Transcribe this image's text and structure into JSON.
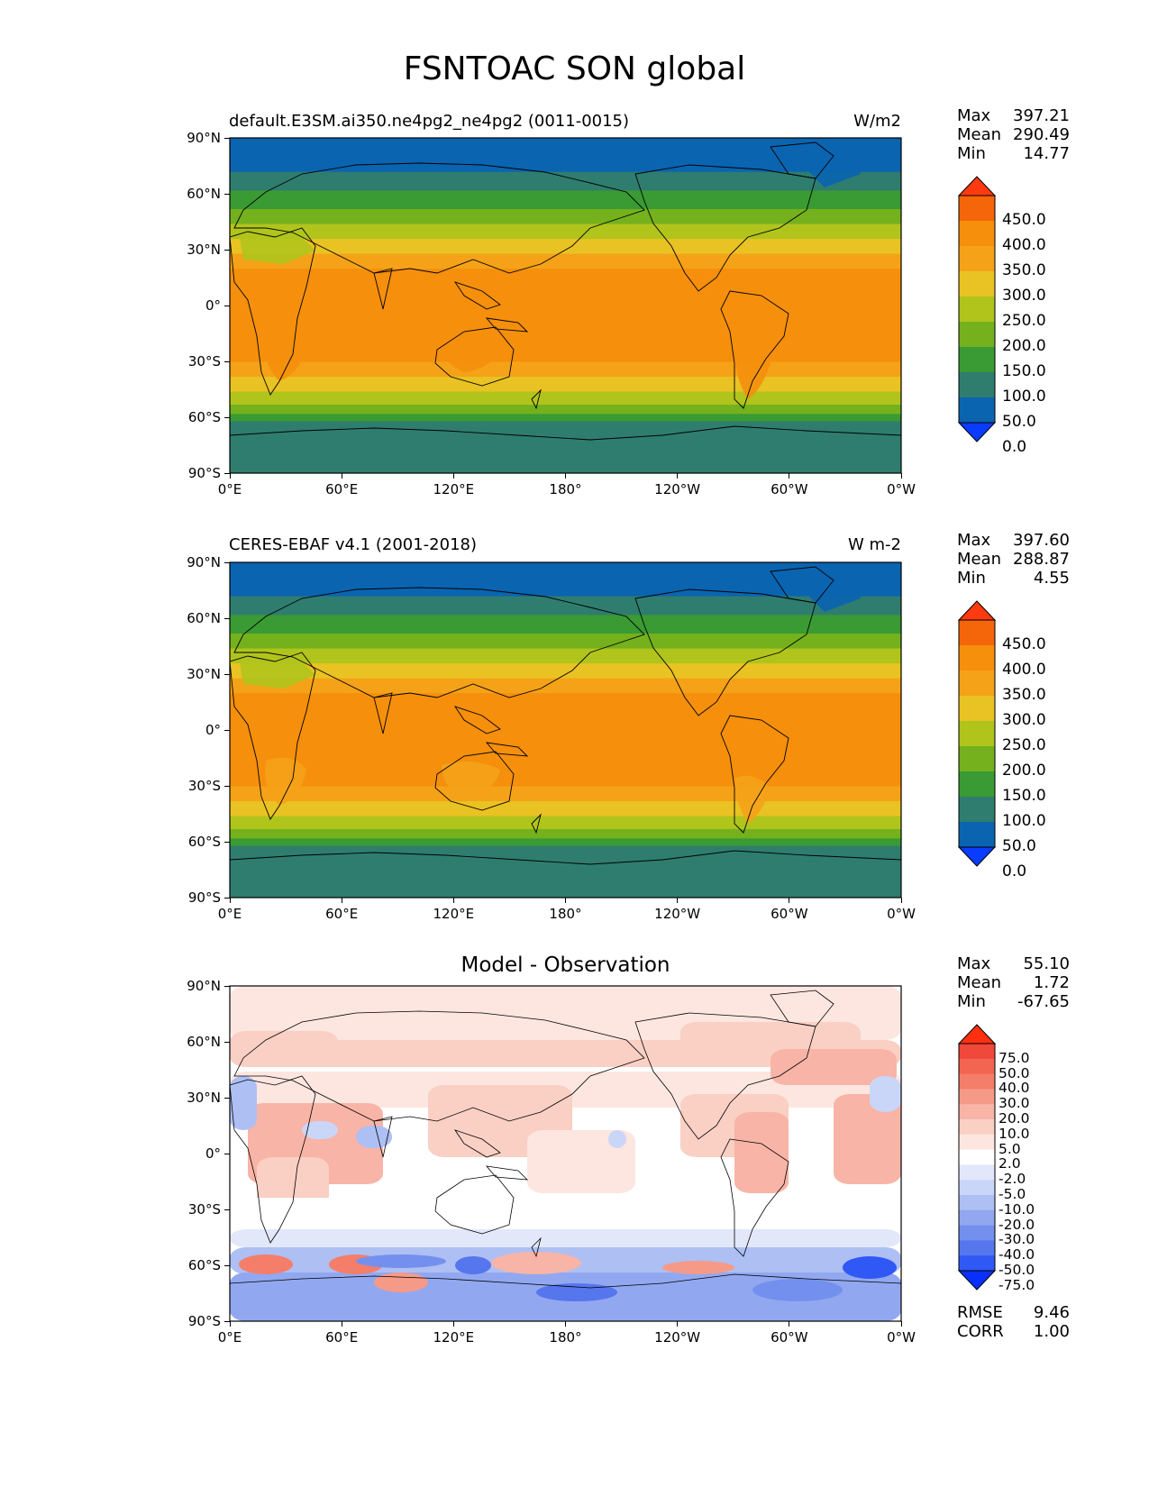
{
  "title": "FSNTOAC SON global",
  "lat_ticks": [
    "90°N",
    "60°N",
    "30°N",
    "0°",
    "30°S",
    "60°S",
    "90°S"
  ],
  "lon_ticks": [
    "0°E",
    "60°E",
    "120°E",
    "180°",
    "120°W",
    "60°W",
    "0°W"
  ],
  "panels": [
    {
      "id": "test",
      "title_left": "default.E3SM.ai350.ne4pg2_ne4pg2 (0011-0015)",
      "title_right": "W/m2",
      "stats": {
        "max_label": "Max",
        "max": "397.21",
        "mean_label": "Mean",
        "mean": "290.49",
        "min_label": "Min",
        "min": "14.77"
      },
      "colorbar_ticks": [
        "450.0",
        "400.0",
        "350.0",
        "300.0",
        "250.0",
        "200.0",
        "150.0",
        "100.0",
        "50.0",
        "0.0"
      ]
    },
    {
      "id": "reference",
      "title_left": "CERES-EBAF v4.1 (2001-2018)",
      "title_right": "W m-2",
      "stats": {
        "max_label": "Max",
        "max": "397.60",
        "mean_label": "Mean",
        "mean": "288.87",
        "min_label": "Min",
        "min": "4.55"
      },
      "colorbar_ticks": [
        "450.0",
        "400.0",
        "350.0",
        "300.0",
        "250.0",
        "200.0",
        "150.0",
        "100.0",
        "50.0",
        "0.0"
      ]
    },
    {
      "id": "difference",
      "title_center": "Model - Observation",
      "stats": {
        "max_label": "Max",
        "max": "55.10",
        "mean_label": "Mean",
        "mean": "1.72",
        "min_label": "Min",
        "min": "-67.65"
      },
      "colorbar_ticks": [
        "75.0",
        "50.0",
        "40.0",
        "30.0",
        "20.0",
        "10.0",
        "5.0",
        "2.0",
        "-2.0",
        "-5.0",
        "-10.0",
        "-20.0",
        "-30.0",
        "-40.0",
        "-50.0",
        "-75.0"
      ],
      "metrics": {
        "rmse_label": "RMSE",
        "rmse": "9.46",
        "corr_label": "CORR",
        "corr": "1.00"
      }
    }
  ],
  "colors": {
    "flux_bands_south_to_north": [
      "#2f7d6e",
      "#2f7d6e",
      "#3a9a33",
      "#74b11d",
      "#b0c41c",
      "#e9c223",
      "#f5a218",
      "#f58f0c",
      "#f58f0c",
      "#f5a218",
      "#e9c223",
      "#b0c41c",
      "#74b11d",
      "#3a9a33",
      "#2f7d6e",
      "#0a64b0"
    ],
    "flux_colorbar_top_to_bottom": [
      "#ff3a10",
      "#f5650a",
      "#f58f0c",
      "#f5a218",
      "#e9c223",
      "#b0c41c",
      "#74b11d",
      "#3a9a33",
      "#2f7d6e",
      "#0a64b0",
      "#0a3cff"
    ],
    "diff_colorbar_top_to_bottom": [
      "#ff3010",
      "#f0483a",
      "#f26550",
      "#f47e6a",
      "#f69a88",
      "#f8b4a6",
      "#facfc4",
      "#fde6e0",
      "#ffffff",
      "#e2e8fa",
      "#cad6f8",
      "#aebff4",
      "#91a8f0",
      "#7490ee",
      "#5676ee",
      "#3058f5",
      "#0a30ff"
    ],
    "coastline": "#000000"
  }
}
